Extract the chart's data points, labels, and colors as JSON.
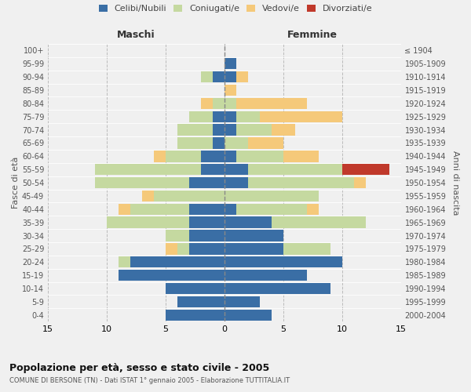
{
  "age_groups_bottom_to_top": [
    "0-4",
    "5-9",
    "10-14",
    "15-19",
    "20-24",
    "25-29",
    "30-34",
    "35-39",
    "40-44",
    "45-49",
    "50-54",
    "55-59",
    "60-64",
    "65-69",
    "70-74",
    "75-79",
    "80-84",
    "85-89",
    "90-94",
    "95-99",
    "100+"
  ],
  "birth_years_bottom_to_top": [
    "2000-2004",
    "1995-1999",
    "1990-1994",
    "1985-1989",
    "1980-1984",
    "1975-1979",
    "1970-1974",
    "1965-1969",
    "1960-1964",
    "1955-1959",
    "1950-1954",
    "1945-1949",
    "1940-1944",
    "1935-1939",
    "1930-1934",
    "1925-1929",
    "1920-1924",
    "1915-1919",
    "1910-1914",
    "1905-1909",
    "≤ 1904"
  ],
  "males": {
    "celibi": [
      5,
      4,
      5,
      9,
      8,
      3,
      3,
      3,
      3,
      0,
      3,
      2,
      2,
      1,
      1,
      1,
      0,
      0,
      1,
      0,
      0
    ],
    "coniugati": [
      0,
      0,
      0,
      0,
      1,
      1,
      2,
      7,
      5,
      6,
      8,
      9,
      3,
      3,
      3,
      2,
      1,
      0,
      1,
      0,
      0
    ],
    "vedovi": [
      0,
      0,
      0,
      0,
      0,
      1,
      0,
      0,
      1,
      1,
      0,
      0,
      1,
      0,
      0,
      0,
      1,
      0,
      0,
      0,
      0
    ],
    "divorziati": [
      0,
      0,
      0,
      0,
      0,
      0,
      0,
      0,
      0,
      0,
      0,
      0,
      0,
      0,
      0,
      0,
      0,
      0,
      0,
      0,
      0
    ]
  },
  "females": {
    "nubili": [
      4,
      3,
      9,
      7,
      10,
      5,
      5,
      4,
      1,
      0,
      2,
      2,
      1,
      0,
      1,
      1,
      0,
      0,
      1,
      1,
      0
    ],
    "coniugate": [
      0,
      0,
      0,
      0,
      0,
      4,
      0,
      8,
      6,
      8,
      9,
      8,
      4,
      2,
      3,
      2,
      1,
      0,
      0,
      0,
      0
    ],
    "vedove": [
      0,
      0,
      0,
      0,
      0,
      0,
      0,
      0,
      1,
      0,
      1,
      0,
      3,
      3,
      2,
      7,
      6,
      1,
      1,
      0,
      0
    ],
    "divorziate": [
      0,
      0,
      0,
      0,
      0,
      0,
      0,
      0,
      0,
      0,
      0,
      4,
      0,
      0,
      0,
      0,
      0,
      0,
      0,
      0,
      0
    ]
  },
  "colors": {
    "celibi_nubili": "#3a6ea5",
    "coniugati": "#c5d9a0",
    "vedovi": "#f5c97a",
    "divorziati": "#c0392b"
  },
  "xlim": 15,
  "title": "Popolazione per età, sesso e stato civile - 2005",
  "subtitle": "COMUNE DI BERSONE (TN) - Dati ISTAT 1° gennaio 2005 - Elaborazione TUTTITALIA.IT",
  "ylabel_left": "Fasce di età",
  "ylabel_right": "Anni di nascita",
  "xlabel_left": "Maschi",
  "xlabel_right": "Femmine",
  "bg_color": "#f0f0f0",
  "plot_bg": "#f0f0f0"
}
